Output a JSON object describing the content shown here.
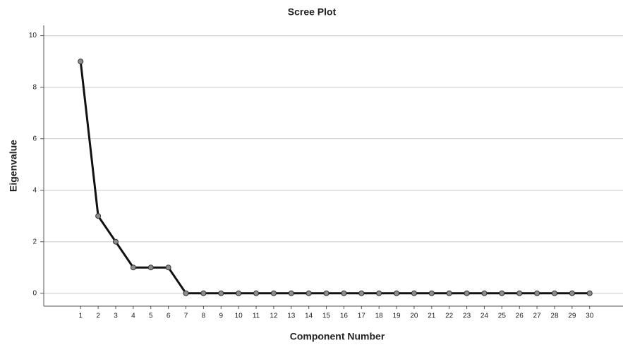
{
  "chart_data": {
    "type": "line",
    "title": "Scree Plot",
    "x_label": "Component Number",
    "y_label": "Eigenvalue",
    "x": [
      1,
      2,
      3,
      4,
      5,
      6,
      7,
      8,
      9,
      10,
      11,
      12,
      13,
      14,
      15,
      16,
      17,
      18,
      19,
      20,
      21,
      22,
      23,
      24,
      25,
      26,
      27,
      28,
      29,
      30
    ],
    "series": [
      {
        "name": "Eigenvalue",
        "color": "#111111",
        "marker_color": "#8c8c8c",
        "values": [
          9,
          3,
          2,
          1,
          1,
          1,
          0,
          0,
          0,
          0,
          0,
          0,
          0,
          0,
          0,
          0,
          0,
          0,
          0,
          0,
          0,
          0,
          0,
          0,
          0,
          0,
          0,
          0,
          0,
          0
        ]
      }
    ],
    "xlim": [
      -1.1,
      31.9
    ],
    "xticks": [
      1,
      2,
      3,
      4,
      5,
      6,
      7,
      8,
      9,
      10,
      11,
      12,
      13,
      14,
      15,
      16,
      17,
      18,
      19,
      20,
      21,
      22,
      23,
      24,
      25,
      26,
      27,
      28,
      29,
      30
    ],
    "ylim": [
      -0.5,
      10.4
    ],
    "yticks": [
      0,
      2,
      4,
      6,
      8,
      10
    ],
    "grid": true
  }
}
